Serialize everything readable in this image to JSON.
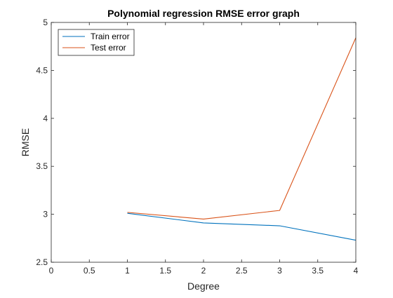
{
  "chart_data": {
    "type": "line",
    "title": "Polynomial regression RMSE error graph",
    "xlabel": "Degree",
    "ylabel": "RMSE",
    "xlim": [
      0,
      4
    ],
    "ylim": [
      2.5,
      5
    ],
    "xticks": [
      0,
      0.5,
      1,
      1.5,
      2,
      2.5,
      3,
      3.5,
      4
    ],
    "xtick_labels": [
      "0",
      "0.5",
      "1",
      "1.5",
      "2",
      "2.5",
      "3",
      "3.5",
      "4"
    ],
    "yticks": [
      2.5,
      3,
      3.5,
      4,
      4.5,
      5
    ],
    "ytick_labels": [
      "2.5",
      "3",
      "3.5",
      "4",
      "4.5",
      "5"
    ],
    "grid": false,
    "legend_position": "top-left",
    "x": [
      1,
      2,
      3,
      4
    ],
    "series": [
      {
        "name": "Train error",
        "color": "#0072bd",
        "values": [
          3.01,
          2.91,
          2.88,
          2.73
        ]
      },
      {
        "name": "Test error",
        "color": "#d95319",
        "values": [
          3.02,
          2.95,
          3.04,
          4.84
        ]
      }
    ]
  }
}
